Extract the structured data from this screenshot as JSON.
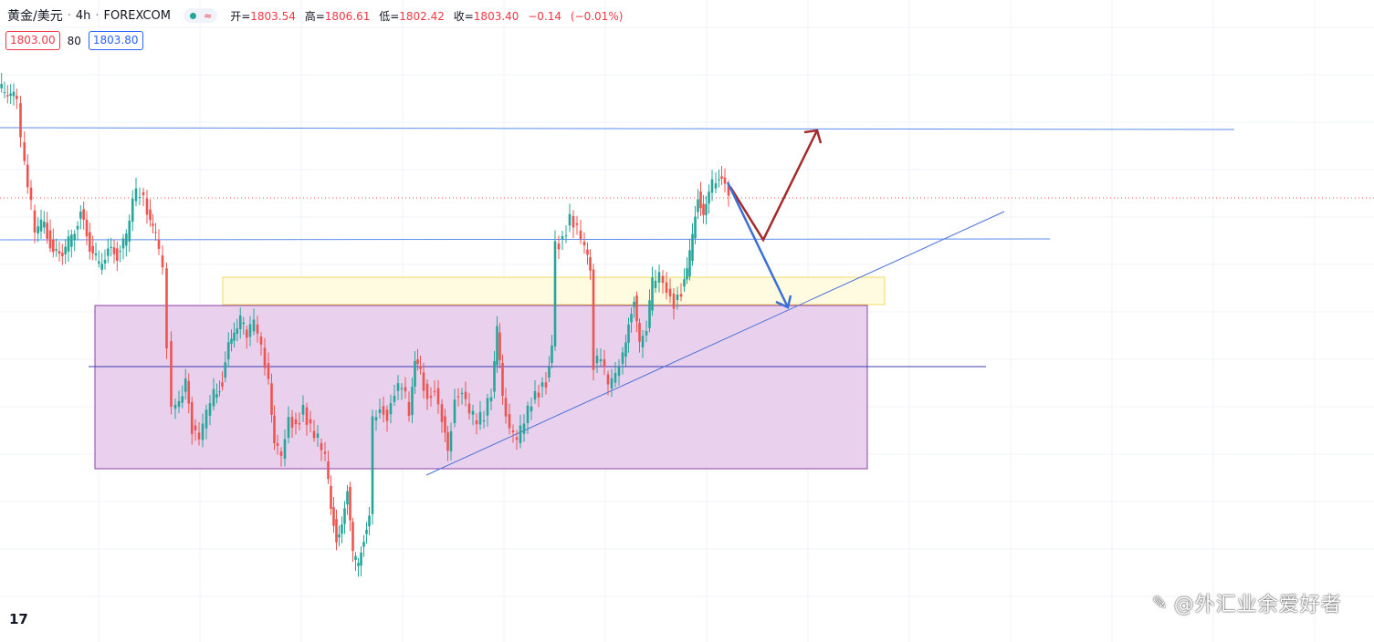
{
  "header": {
    "symbol": "黄金/美元",
    "interval": "4h",
    "exchange": "FOREXCOM",
    "open_label": "开=",
    "open": "1803.54",
    "high_label": "高=",
    "high": "1806.61",
    "low_label": "低=",
    "low": "1802.42",
    "close_label": "收=",
    "close": "1803.40",
    "change": "−0.14",
    "change_pct": "(−0.01%)"
  },
  "quote": {
    "bid": "1803.00",
    "spread": "80",
    "ask": "1803.80"
  },
  "logo": {
    "text": "17"
  },
  "watermark": {
    "text": "@外汇业余爱好者"
  },
  "colors": {
    "up": "#26a69a",
    "down": "#ef5350",
    "grid": "#f0f3fa",
    "hline": "#5b8def",
    "box_purple": "#e9d1ee",
    "box_yellow": "#fffbe0",
    "arrow_red": "#a52a2a",
    "arrow_blue": "#3a6fd8"
  },
  "icons": {
    "status": "green-dot-icon",
    "wave": "approx-wave-icon",
    "logo": "tradingview-logo-icon"
  }
}
